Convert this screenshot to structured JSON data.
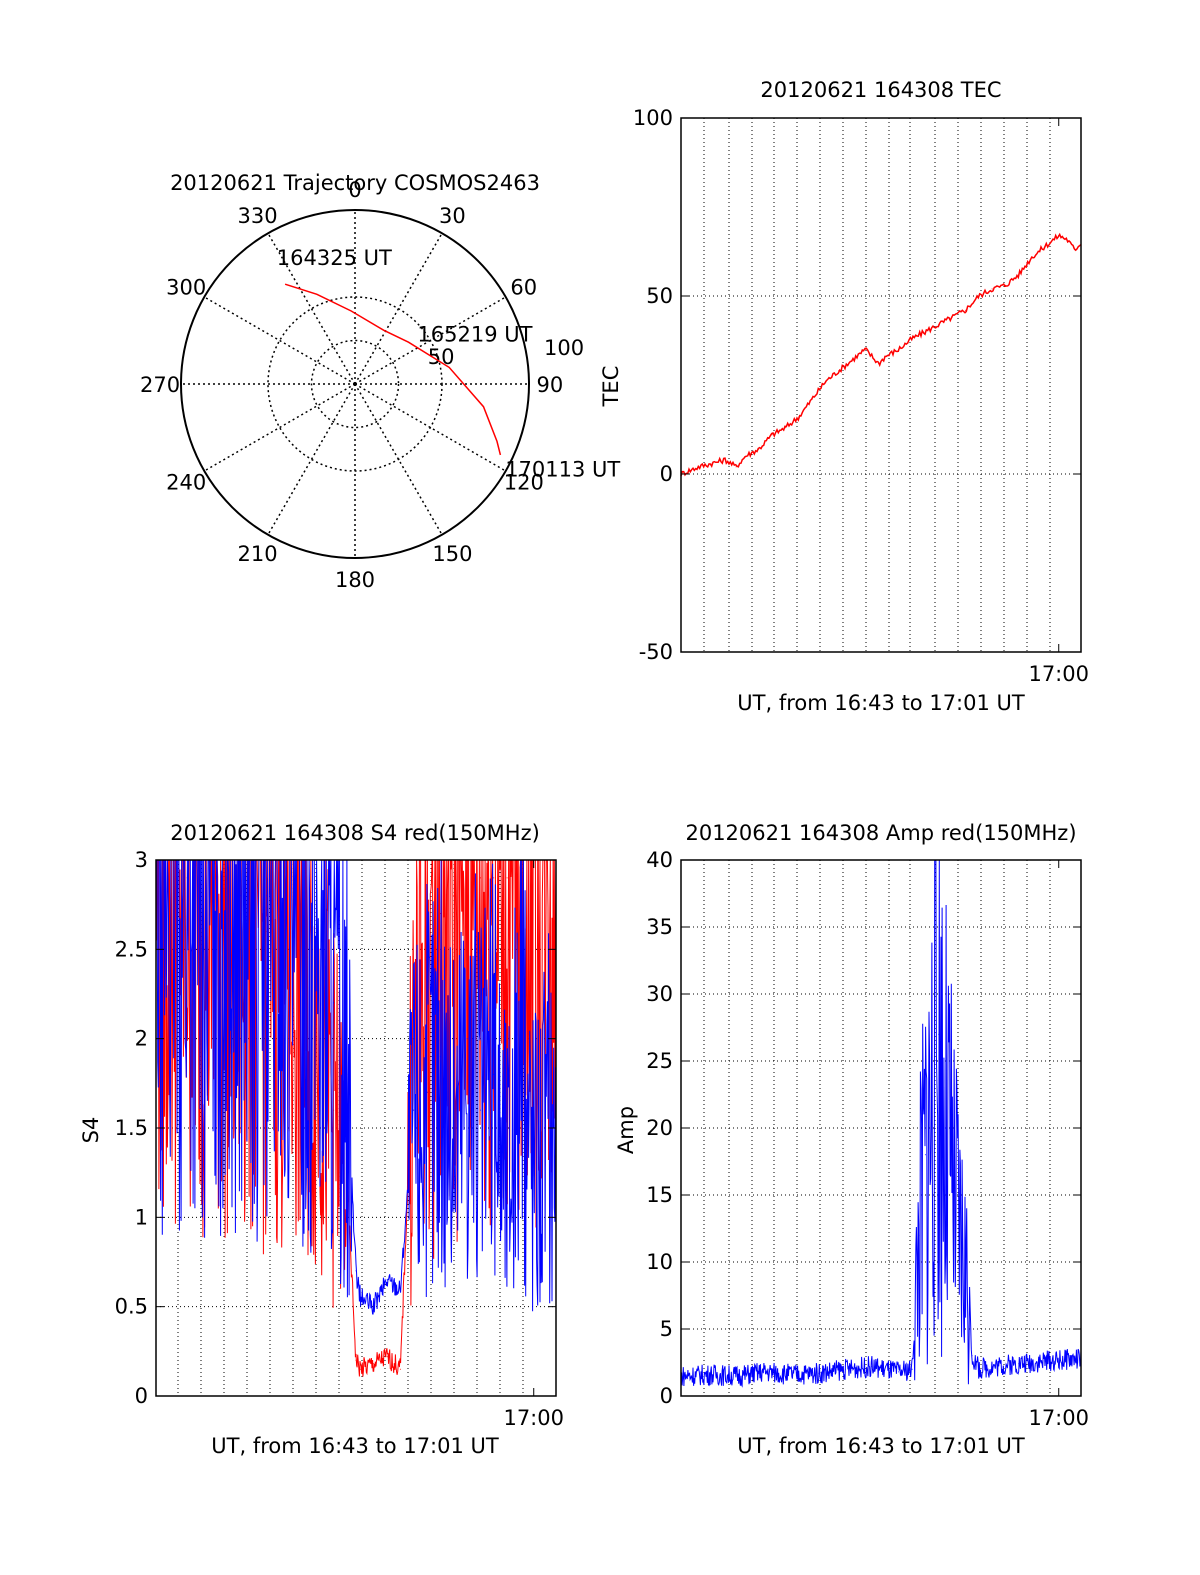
{
  "colors": {
    "red": "#ff0000",
    "blue": "#0000ff",
    "axis": "#000000",
    "grid": "#000000"
  },
  "chart_data": [
    {
      "type": "polar",
      "title": "20120621 Trajectory COSMOS2463",
      "azimuth_labels": [
        "0",
        "30",
        "60",
        "90",
        "120",
        "150",
        "180",
        "210",
        "240",
        "270",
        "300",
        "330"
      ],
      "ring_labels": [
        "50",
        "100"
      ],
      "elevation_circles_zenith_deg": [
        25,
        50,
        100
      ],
      "grid": true,
      "series": [
        {
          "color": "red",
          "points": [
            [
              325,
              70
            ],
            [
              337,
              56
            ],
            [
              357,
              42
            ],
            [
              28,
              35
            ],
            [
              52,
              39
            ],
            [
              80,
              55
            ],
            [
              100,
              75
            ],
            [
              112,
              88
            ],
            [
              116,
              93
            ]
          ]
        }
      ],
      "annotations": [
        {
          "text": "164325 UT",
          "azimuth": 329,
          "zenith": 85
        },
        {
          "text": "165219 UT",
          "azimuth": 52,
          "zenith": 47
        },
        {
          "text": "170113 UT",
          "azimuth": 119,
          "zenith": 100
        }
      ]
    },
    {
      "type": "line",
      "title": "20120621 164308 TEC",
      "xlabel": "UT, from 16:43 to 17:01 UT",
      "ylabel": "TEC",
      "xlim": [
        16.7167,
        17.0167
      ],
      "ylim": [
        -50,
        100
      ],
      "yticks": [
        -50,
        0,
        50,
        100
      ],
      "xtick_labels": [
        {
          "x": 17.0,
          "label": "17:00"
        }
      ],
      "grid": true,
      "series": [
        {
          "color": "red",
          "x": [
            16.7167,
            16.73,
            16.74,
            16.75,
            16.758,
            16.765,
            16.775,
            16.785,
            16.795,
            16.805,
            16.815,
            16.825,
            16.835,
            16.845,
            16.855,
            16.865,
            16.87,
            16.88,
            16.89,
            16.9,
            16.91,
            16.92,
            16.93,
            16.94,
            16.95,
            16.96,
            16.97,
            16.98,
            16.99,
            17.0,
            17.006,
            17.012,
            17.0167
          ],
          "y": [
            0,
            2,
            3,
            4,
            2,
            5,
            7,
            11,
            13,
            16,
            21,
            26,
            29,
            32,
            35,
            31,
            33,
            35,
            38,
            40,
            42,
            44,
            46,
            50,
            52,
            53,
            56,
            61,
            64,
            67,
            66,
            63,
            65
          ]
        }
      ]
    },
    {
      "type": "line",
      "title": "20120621 164308 S4 red(150MHz)",
      "xlabel": "UT, from 16:43 to 17:01 UT",
      "ylabel": "S4",
      "xlim": [
        16.7167,
        17.0167
      ],
      "ylim": [
        0,
        3
      ],
      "yticks": [
        0,
        0.5,
        1,
        1.5,
        2,
        2.5,
        3
      ],
      "ytick_labels": [
        "0",
        "0.5",
        "1",
        "1.5",
        "2",
        "2.5",
        "3"
      ],
      "xtick_labels": [
        {
          "x": 17.0,
          "label": "17:00"
        }
      ],
      "grid": true,
      "series": [
        {
          "color": "red",
          "x": [
            16.7167,
            16.74,
            16.76,
            16.78,
            16.8,
            16.82,
            16.83,
            16.84,
            16.85,
            16.86,
            16.8667,
            16.87,
            16.88,
            16.89,
            16.9,
            16.91,
            16.92,
            16.93,
            16.94,
            16.95,
            16.96,
            16.97,
            16.98,
            16.99,
            17.0,
            17.0167
          ],
          "y": [
            3.0,
            2.9,
            2.8,
            2.7,
            2.6,
            2.4,
            2.2,
            2.0,
            1.6,
            1.2,
            0.2,
            0.15,
            0.18,
            0.22,
            0.15,
            2.0,
            2.4,
            2.7,
            2.8,
            2.9,
            2.9,
            2.9,
            2.9,
            3.0,
            3.0,
            2.9
          ]
        },
        {
          "color": "blue",
          "x": [
            16.7167,
            16.74,
            16.76,
            16.78,
            16.8,
            16.82,
            16.83,
            16.84,
            16.85,
            16.86,
            16.8667,
            16.87,
            16.88,
            16.89,
            16.9,
            16.91,
            16.92,
            16.93,
            16.94,
            16.95,
            16.96,
            16.97,
            16.98,
            16.99,
            17.0,
            17.0167
          ],
          "y": [
            3.0,
            3.0,
            2.9,
            2.8,
            2.8,
            2.7,
            2.6,
            2.5,
            2.2,
            1.8,
            0.7,
            0.55,
            0.5,
            0.65,
            0.6,
            1.6,
            1.7,
            1.9,
            1.5,
            2.0,
            1.6,
            1.8,
            1.3,
            1.9,
            1.4,
            1.6
          ]
        }
      ]
    },
    {
      "type": "line",
      "title": "20120621 164308 Amp red(150MHz)",
      "xlabel": "UT, from 16:43 to 17:01 UT",
      "ylabel": "Amp",
      "xlim": [
        16.7167,
        17.0167
      ],
      "ylim": [
        0,
        40
      ],
      "yticks": [
        0,
        5,
        10,
        15,
        20,
        25,
        30,
        35,
        40
      ],
      "xtick_labels": [
        {
          "x": 17.0,
          "label": "17:00"
        }
      ],
      "grid": true,
      "series": [
        {
          "color": "blue",
          "x": [
            16.7167,
            16.74,
            16.76,
            16.78,
            16.8,
            16.82,
            16.84,
            16.86,
            16.88,
            16.89,
            16.895,
            16.9,
            16.905,
            16.91,
            16.915,
            16.92,
            16.925,
            16.93,
            16.935,
            16.94,
            16.95,
            16.97,
            16.99,
            17.0167
          ],
          "y": [
            1.5,
            1.6,
            1.5,
            1.8,
            1.6,
            1.7,
            2.0,
            2.2,
            1.8,
            2.0,
            12,
            18,
            22,
            27,
            20,
            16,
            12,
            10,
            3,
            2.0,
            2.2,
            2.4,
            2.6,
            2.8
          ],
          "noise_band": [
            0,
            1
          ]
        }
      ]
    }
  ]
}
